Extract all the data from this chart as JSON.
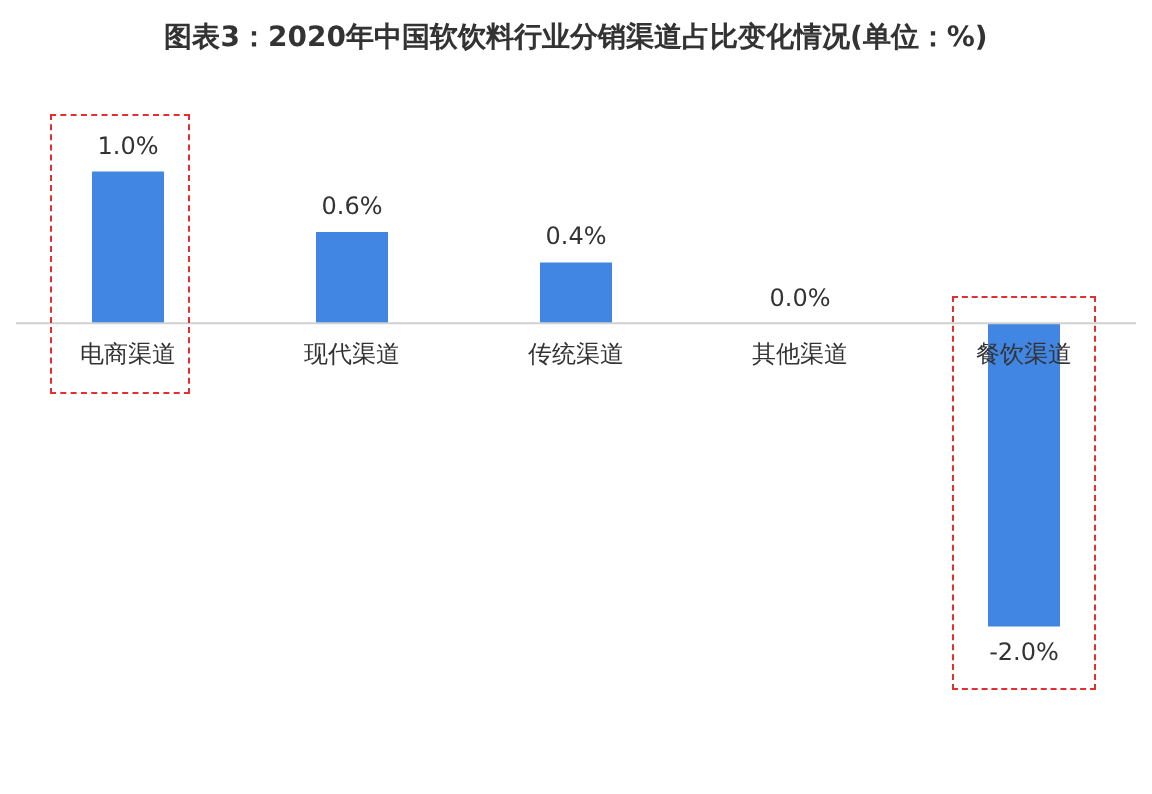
{
  "chart_data": {
    "type": "bar",
    "title": "图表3：2020年中国软饮料行业分销渠道占比变化情况(单位：%)",
    "categories": [
      "电商渠道",
      "现代渠道",
      "传统渠道",
      "其他渠道",
      "餐饮渠道"
    ],
    "values": [
      1.0,
      0.6,
      0.4,
      0.0,
      -2.0
    ],
    "value_labels": [
      "1.0%",
      "0.6%",
      "0.4%",
      "0.0%",
      "-2.0%"
    ],
    "color": "#4186e3"
  }
}
